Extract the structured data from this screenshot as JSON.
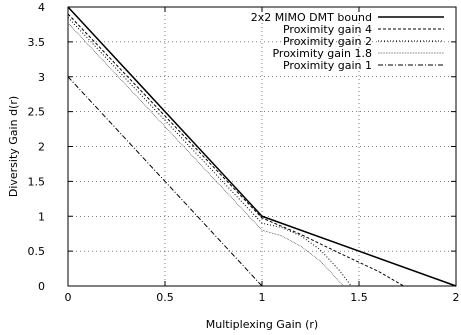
{
  "chart_data": {
    "type": "line",
    "xlabel": "Multiplexing Gain (r)",
    "ylabel": "Diversity Gain d(r)",
    "xlim": [
      0,
      2
    ],
    "ylim": [
      0,
      4
    ],
    "x_ticks": [
      "0",
      "0.5",
      "1",
      "1.5",
      "2"
    ],
    "y_ticks": [
      "0",
      "0.5",
      "1",
      "1.5",
      "2",
      "2.5",
      "3",
      "3.5",
      "4"
    ],
    "grid": true,
    "legend_position": "top-right",
    "series": [
      {
        "name": "2x2 MIMO DMT bound",
        "style": "solid",
        "points": [
          [
            0,
            4
          ],
          [
            1,
            1
          ],
          [
            2,
            0
          ]
        ]
      },
      {
        "name": "Proximity gain 4",
        "style": "dashed",
        "points": [
          [
            0,
            3.9
          ],
          [
            1,
            0.975
          ],
          [
            1.2,
            0.74
          ],
          [
            1.4,
            0.47
          ],
          [
            1.6,
            0.21
          ],
          [
            1.73,
            0
          ]
        ]
      },
      {
        "name": "Proximity gain 2",
        "style": "dotted",
        "points": [
          [
            0,
            3.85
          ],
          [
            1,
            0.9
          ],
          [
            1.1,
            0.84
          ],
          [
            1.2,
            0.72
          ],
          [
            1.3,
            0.52
          ],
          [
            1.4,
            0.22
          ],
          [
            1.46,
            0
          ]
        ]
      },
      {
        "name": "Proximity gain 1.8",
        "style": "dotted-fine",
        "points": [
          [
            0,
            3.77
          ],
          [
            1,
            0.8
          ],
          [
            1.1,
            0.72
          ],
          [
            1.2,
            0.57
          ],
          [
            1.3,
            0.36
          ],
          [
            1.38,
            0.12
          ],
          [
            1.42,
            0
          ]
        ]
      },
      {
        "name": "Proximity gain 1",
        "style": "dash-dot",
        "points": [
          [
            0,
            3
          ],
          [
            1,
            0
          ]
        ]
      }
    ]
  }
}
